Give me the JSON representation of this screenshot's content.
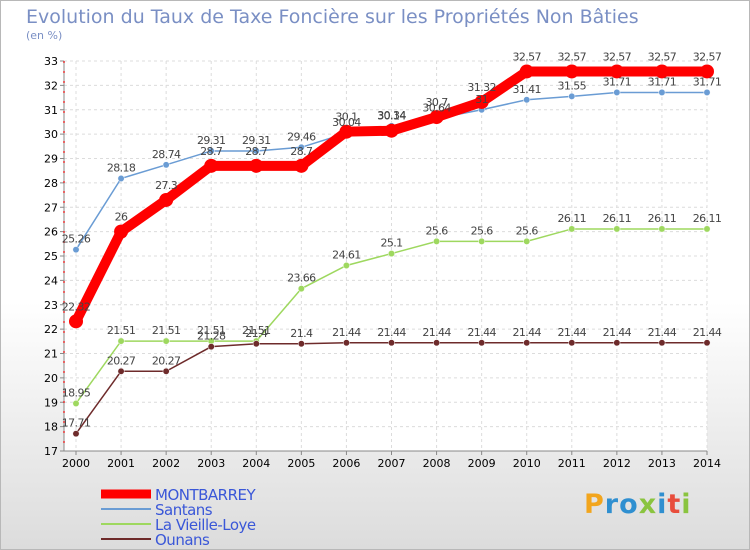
{
  "title": "Evolution du Taux de Taxe Foncière sur les Propriétés Non Bâties",
  "subtitle": "(en %)",
  "logo": {
    "letters": [
      "P",
      "r",
      "o",
      "x",
      "i",
      "t",
      "i"
    ],
    "colors": [
      "#f2a51d",
      "#2f8fd0",
      "#2f8fd0",
      "#8ac43f",
      "#2f8fd0",
      "#e84d3c",
      "#8ac43f"
    ]
  },
  "chart_data": {
    "type": "line",
    "title": "Evolution du Taux de Taxe Foncière sur les Propriétés Non Bâties",
    "ylabel": "(en %)",
    "xlabel": "",
    "ylim": [
      17,
      33
    ],
    "yticks": [
      17,
      18,
      19,
      20,
      21,
      22,
      23,
      24,
      25,
      26,
      27,
      28,
      29,
      30,
      31,
      32,
      33
    ],
    "x": [
      "2000",
      "2001",
      "2002",
      "2003",
      "2004",
      "2005",
      "2006",
      "2007",
      "2008",
      "2009",
      "2010",
      "2011",
      "2012",
      "2013",
      "2014"
    ],
    "grid": true,
    "legend": "bottom-left",
    "series": [
      {
        "name": "MONTBARREY",
        "color": "#ff0000",
        "width": 10,
        "values": [
          22.32,
          26,
          27.3,
          28.7,
          28.7,
          28.7,
          30.1,
          30.14,
          30.7,
          31.32,
          32.57,
          32.57,
          32.57,
          32.57,
          32.57
        ],
        "labels": [
          "22.32",
          "26",
          "27.3",
          "28.7",
          "28.7",
          "28.7",
          "30.1",
          "30.14",
          "30.7",
          "31.32",
          "32.57",
          "32.57",
          "32.57",
          "32.57",
          "32.57"
        ]
      },
      {
        "name": "Santans",
        "color": "#6a9cd4",
        "width": 1.5,
        "values": [
          25.26,
          28.18,
          28.74,
          29.31,
          29.31,
          29.46,
          30.04,
          30.34,
          30.64,
          31,
          31.41,
          31.55,
          31.71,
          31.71,
          31.71
        ],
        "labels": [
          "25.26",
          "28.18",
          "28.74",
          "29.31",
          "29.31",
          "29.46",
          "30.04",
          "30.34",
          "30.64",
          "31",
          "31.41",
          "31.55",
          "31.71",
          "31.71",
          "31.71"
        ]
      },
      {
        "name": "La Vieille-Loye",
        "color": "#9ed85f",
        "width": 1.5,
        "values": [
          18.95,
          21.51,
          21.51,
          21.51,
          21.51,
          23.66,
          24.61,
          25.1,
          25.6,
          25.6,
          25.6,
          26.11,
          26.11,
          26.11,
          26.11
        ],
        "labels": [
          "18.95",
          "21.51",
          "21.51",
          "21.51",
          "21.51",
          "23.66",
          "24.61",
          "25.1",
          "25.6",
          "25.6",
          "25.6",
          "26.11",
          "26.11",
          "26.11",
          "26.11"
        ]
      },
      {
        "name": "Ounans",
        "color": "#6e2b2b",
        "width": 1.5,
        "values": [
          17.71,
          20.27,
          20.27,
          21.28,
          21.4,
          21.4,
          21.44,
          21.44,
          21.44,
          21.44,
          21.44,
          21.44,
          21.44,
          21.44,
          21.44
        ],
        "labels": [
          "17.71",
          "20.27",
          "20.27",
          "21.28",
          "21.4",
          "21.4",
          "21.44",
          "21.44",
          "21.44",
          "21.44",
          "21.44",
          "21.44",
          "21.44",
          "21.44",
          "21.44"
        ]
      }
    ]
  }
}
